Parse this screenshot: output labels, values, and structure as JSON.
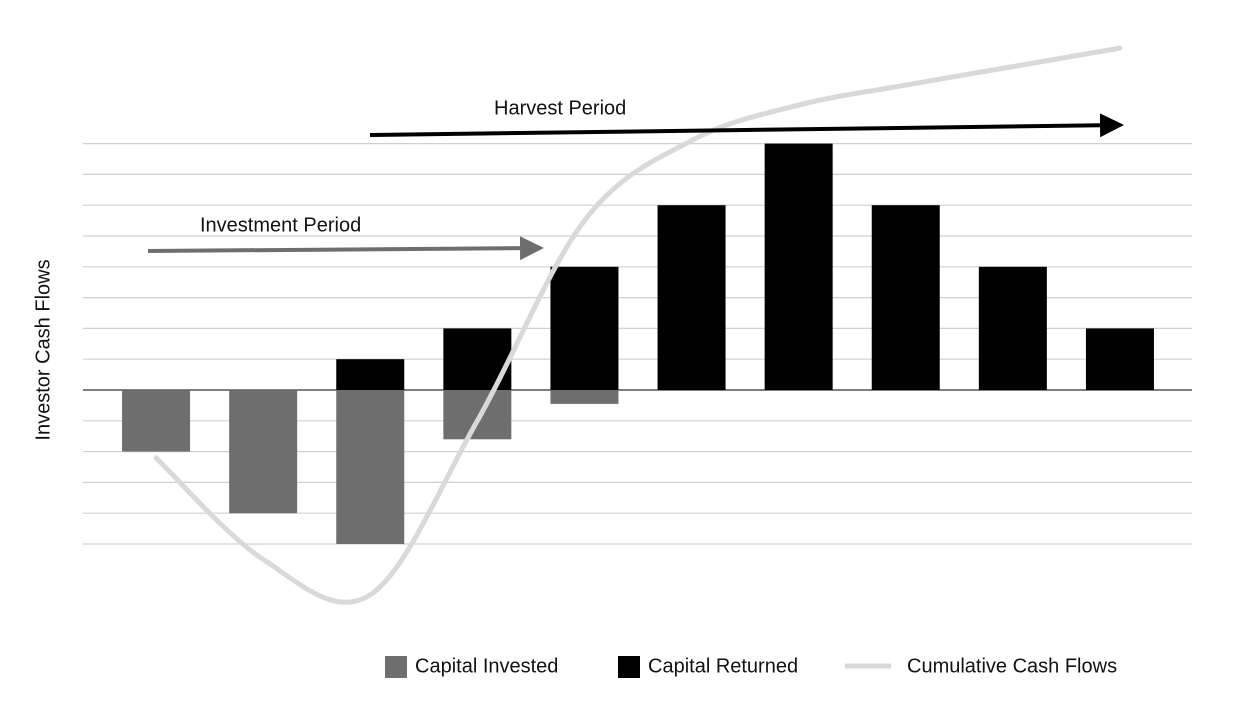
{
  "chart_data": {
    "type": "bar",
    "y_label": "Investor Cash Flows",
    "annotations": [
      "Harvest Period",
      "Investment Period"
    ],
    "categories": [
      null,
      null,
      null,
      null,
      null,
      null,
      null,
      null,
      null,
      null
    ],
    "series": [
      {
        "name": "Capital Invested",
        "color": "#6e6e6e",
        "values": [
          -2,
          -4,
          -5,
          -1.6,
          -0.45,
          0,
          0,
          0,
          0,
          0
        ]
      },
      {
        "name": "Capital Returned",
        "color": "#000000",
        "values": [
          0,
          0,
          1,
          2,
          4,
          6,
          8,
          6,
          4,
          2
        ]
      },
      {
        "name": "Cumulative Cash Flows",
        "color": "#d9d9d9",
        "type": "line",
        "values": [
          -2.2,
          -5.5,
          -6.65,
          -1,
          5.5,
          8.1,
          9.25,
          9.9,
          10.5,
          11.1
        ]
      }
    ],
    "ylim": [
      -7.5,
      11.5
    ],
    "yticks": [
      -5,
      -4,
      -3,
      -2,
      -1,
      0,
      1,
      2,
      3,
      4,
      5,
      6,
      7,
      8
    ],
    "grid": true
  }
}
